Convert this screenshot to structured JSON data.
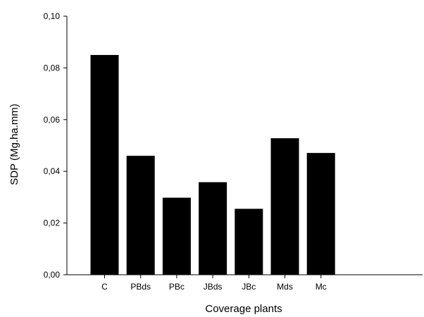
{
  "chart_data": {
    "type": "bar",
    "title": "",
    "xlabel": "Coverage plants",
    "ylabel": "SDP (Mg.ha.mm)",
    "categories": [
      "C",
      "PBds",
      "PBc",
      "JBds",
      "JBc",
      "Mds",
      "Mc"
    ],
    "values": [
      0.085,
      0.046,
      0.0298,
      0.0358,
      0.0255,
      0.0528,
      0.0471
    ],
    "ylim": [
      0,
      0.1
    ],
    "yticks": [
      "0,00",
      "0,02",
      "0,04",
      "0,06",
      "0,08",
      "0,10"
    ],
    "bar_color": "#000000",
    "grid": false,
    "legend": "none"
  }
}
